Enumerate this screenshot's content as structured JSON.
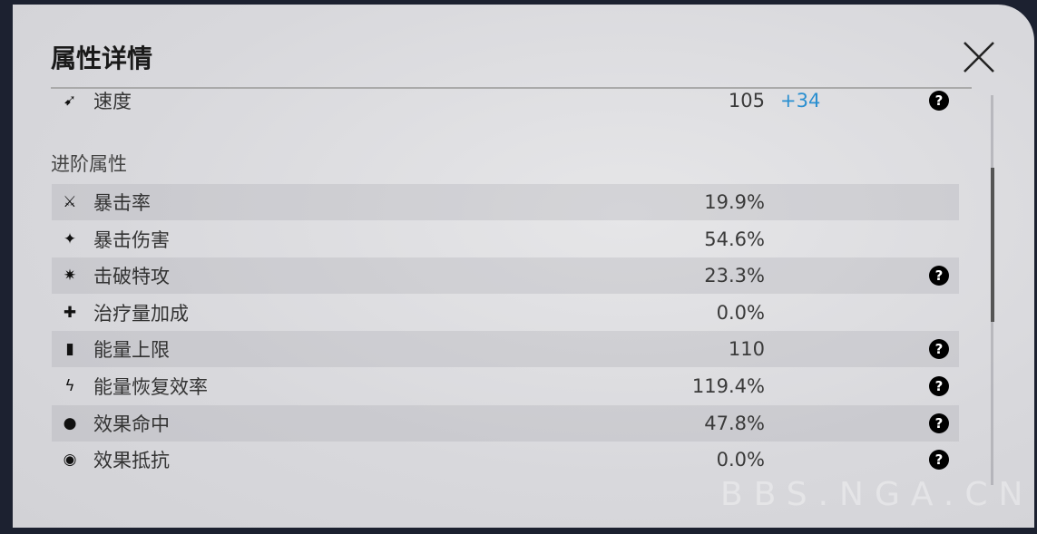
{
  "title": "属性详情",
  "basic": [
    {
      "icon": "speed-icon",
      "glyph": "➹",
      "label": "速度",
      "value": "105",
      "bonus": "+34",
      "help": true
    }
  ],
  "section_title": "进阶属性",
  "advanced": [
    {
      "icon": "crit-rate-icon",
      "glyph": "⚔",
      "label": "暴击率",
      "value": "19.9%",
      "help": false
    },
    {
      "icon": "crit-damage-icon",
      "glyph": "✦",
      "label": "暴击伤害",
      "value": "54.6%",
      "help": false
    },
    {
      "icon": "break-effect-icon",
      "glyph": "✷",
      "label": "击破特攻",
      "value": "23.3%",
      "help": true
    },
    {
      "icon": "healing-bonus-icon",
      "glyph": "✚",
      "label": "治疗量加成",
      "value": "0.0%",
      "help": false
    },
    {
      "icon": "max-energy-icon",
      "glyph": "▮",
      "label": "能量上限",
      "value": "110",
      "help": true
    },
    {
      "icon": "energy-regen-icon",
      "glyph": "ϟ",
      "label": "能量恢复效率",
      "value": "119.4%",
      "help": true
    },
    {
      "icon": "effect-hit-icon",
      "glyph": "●",
      "label": "效果命中",
      "value": "47.8%",
      "help": true
    },
    {
      "icon": "effect-res-icon",
      "glyph": "◉",
      "label": "效果抵抗",
      "value": "0.0%",
      "help": true
    }
  ],
  "help_glyph": "?",
  "watermark": "BBS.NGA.CN",
  "colors": {
    "bonus": "#2a8fd0",
    "panel": "#d8d8dc",
    "background": "#1c2130"
  }
}
